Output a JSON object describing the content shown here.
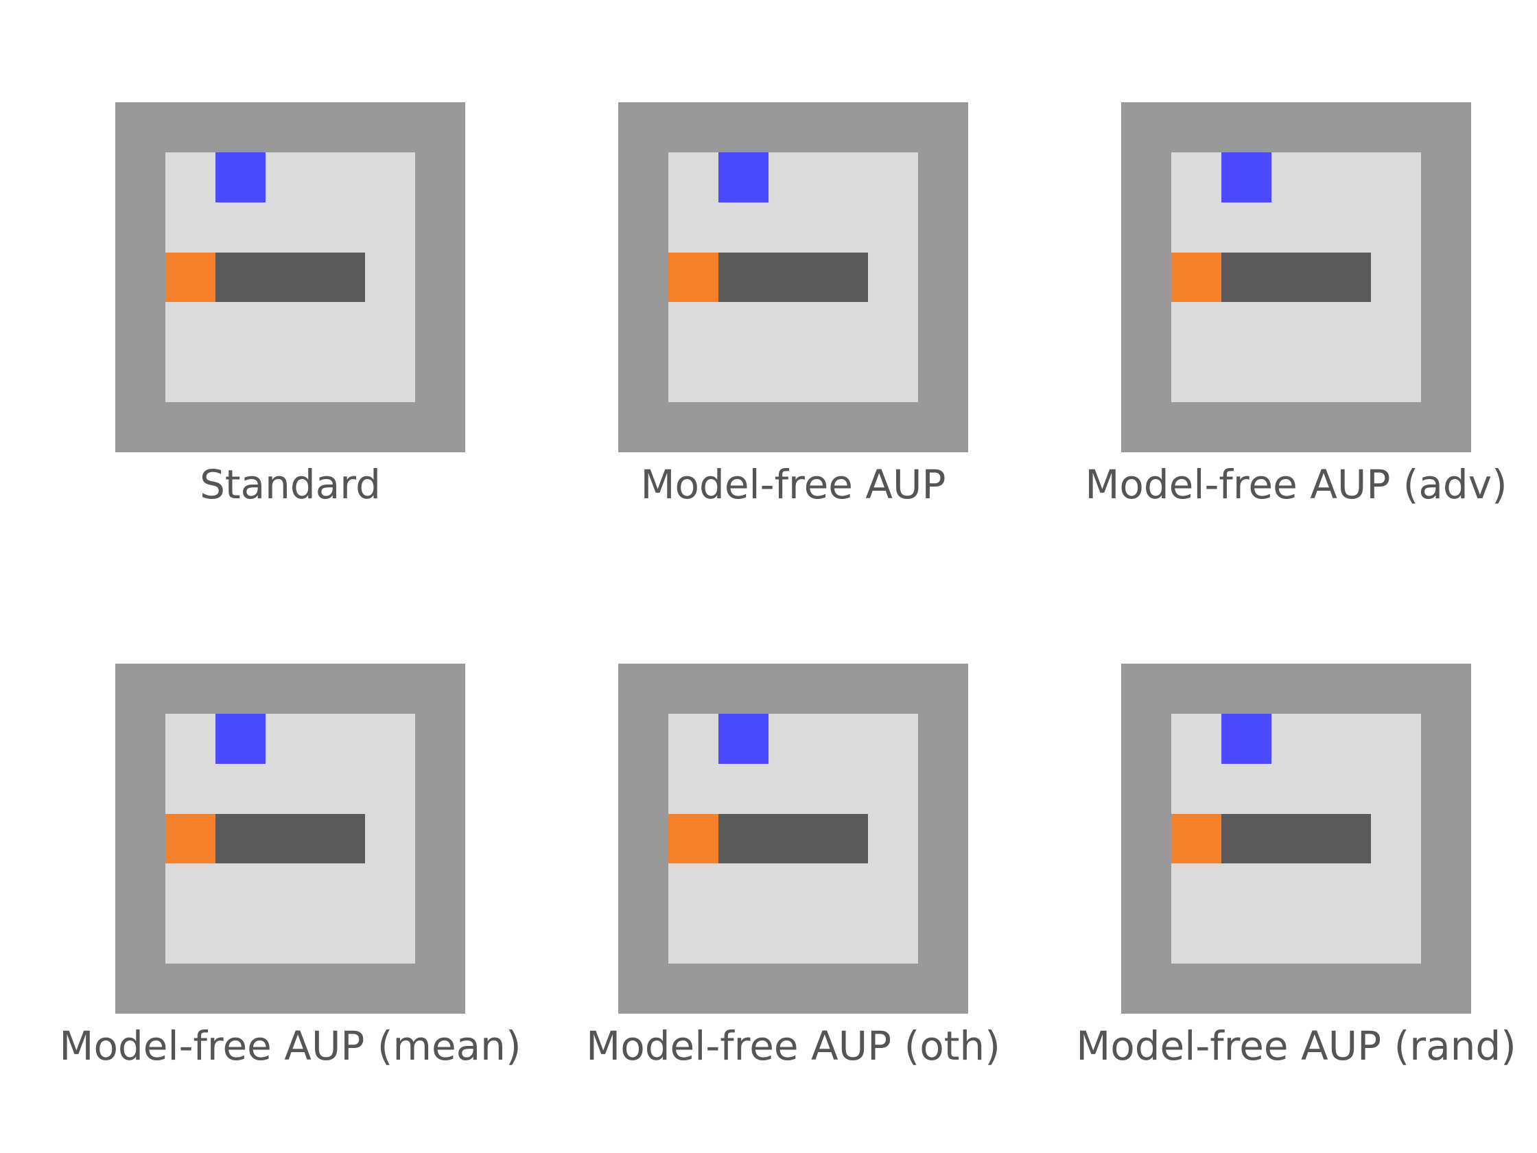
{
  "colors": {
    "wall": "#999999",
    "floor": "#dbdbdb",
    "goal": "#4a4aff",
    "agent": "#f5822a",
    "box": "#5a5a5a",
    "caption": "#555555"
  },
  "grid": {
    "rows": 7,
    "cols": 7,
    "legend": {
      "W": "wall",
      ".": "floor",
      "G": "goal",
      "A": "agent",
      "B": "box"
    }
  },
  "panels": [
    {
      "label": "Standard",
      "layout": [
        "WWWWWWW",
        "W.G...W",
        "W.....W",
        "WABBB.W",
        "W.....W",
        "W.....W",
        "WWWWWWW"
      ]
    },
    {
      "label": "Model-free AUP",
      "layout": [
        "WWWWWWW",
        "W.G...W",
        "W.....W",
        "WABBB.W",
        "W.....W",
        "W.....W",
        "WWWWWWW"
      ]
    },
    {
      "label": "Model-free AUP (adv)",
      "layout": [
        "WWWWWWW",
        "W.G...W",
        "W.....W",
        "WABBB.W",
        "W.....W",
        "W.....W",
        "WWWWWWW"
      ]
    },
    {
      "label": "Model-free AUP (mean)",
      "layout": [
        "WWWWWWW",
        "W.G...W",
        "W.....W",
        "WABBB.W",
        "W.....W",
        "W.....W",
        "WWWWWWW"
      ]
    },
    {
      "label": "Model-free AUP (oth)",
      "layout": [
        "WWWWWWW",
        "W.G...W",
        "W.....W",
        "WABBB.W",
        "W.....W",
        "W.....W",
        "WWWWWWW"
      ]
    },
    {
      "label": "Model-free AUP (rand)",
      "layout": [
        "WWWWWWW",
        "W.G...W",
        "W.....W",
        "WABBB.W",
        "W.....W",
        "W.....W",
        "WWWWWWW"
      ]
    }
  ]
}
